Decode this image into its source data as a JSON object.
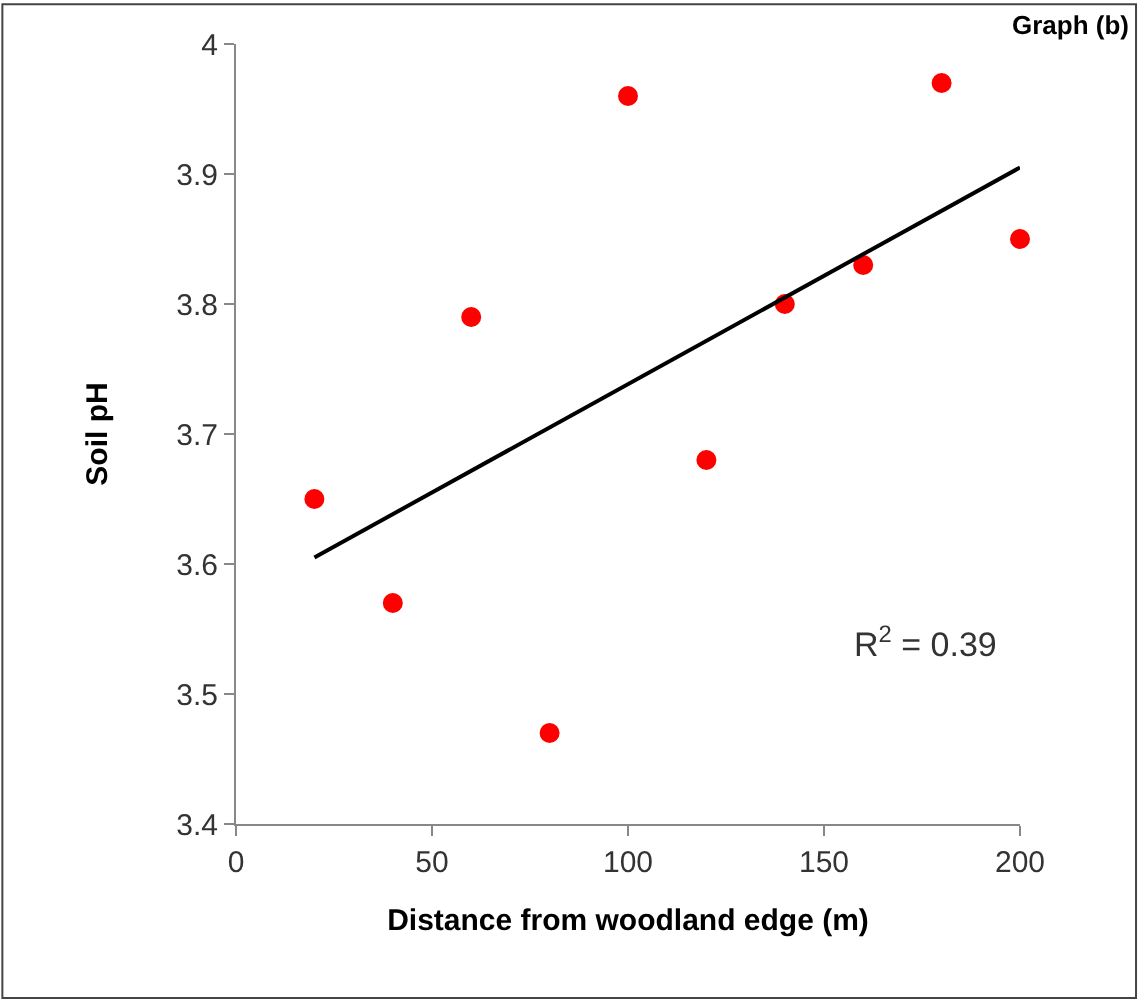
{
  "chart_data": {
    "type": "scatter",
    "title": "Graph (b)",
    "xlabel": "Distance from woodland edge (m)",
    "ylabel": "Soil pH",
    "annotations": [
      "R$^{2}$ = 0.39"
    ],
    "series": [
      {
        "marker": "circle",
        "color": "#ff0000",
        "x": [
          20,
          40,
          60,
          80,
          100,
          120,
          140,
          160,
          180,
          200
        ],
        "values": [
          3.65,
          3.57,
          3.79,
          3.47,
          3.96,
          3.68,
          3.8,
          3.83,
          3.97,
          3.85
        ]
      },
      {
        "type": "line",
        "color": "#000000",
        "x": [
          20,
          200
        ],
        "values": [
          3.605,
          3.905
        ]
      }
    ],
    "xlim": [
      0,
      200
    ],
    "xticks": [
      0,
      50,
      100,
      150,
      200
    ],
    "ylim": [
      3.4,
      4.0
    ],
    "yticks": [
      3.4,
      3.5,
      3.6,
      3.7,
      3.8,
      3.9,
      4
    ]
  }
}
